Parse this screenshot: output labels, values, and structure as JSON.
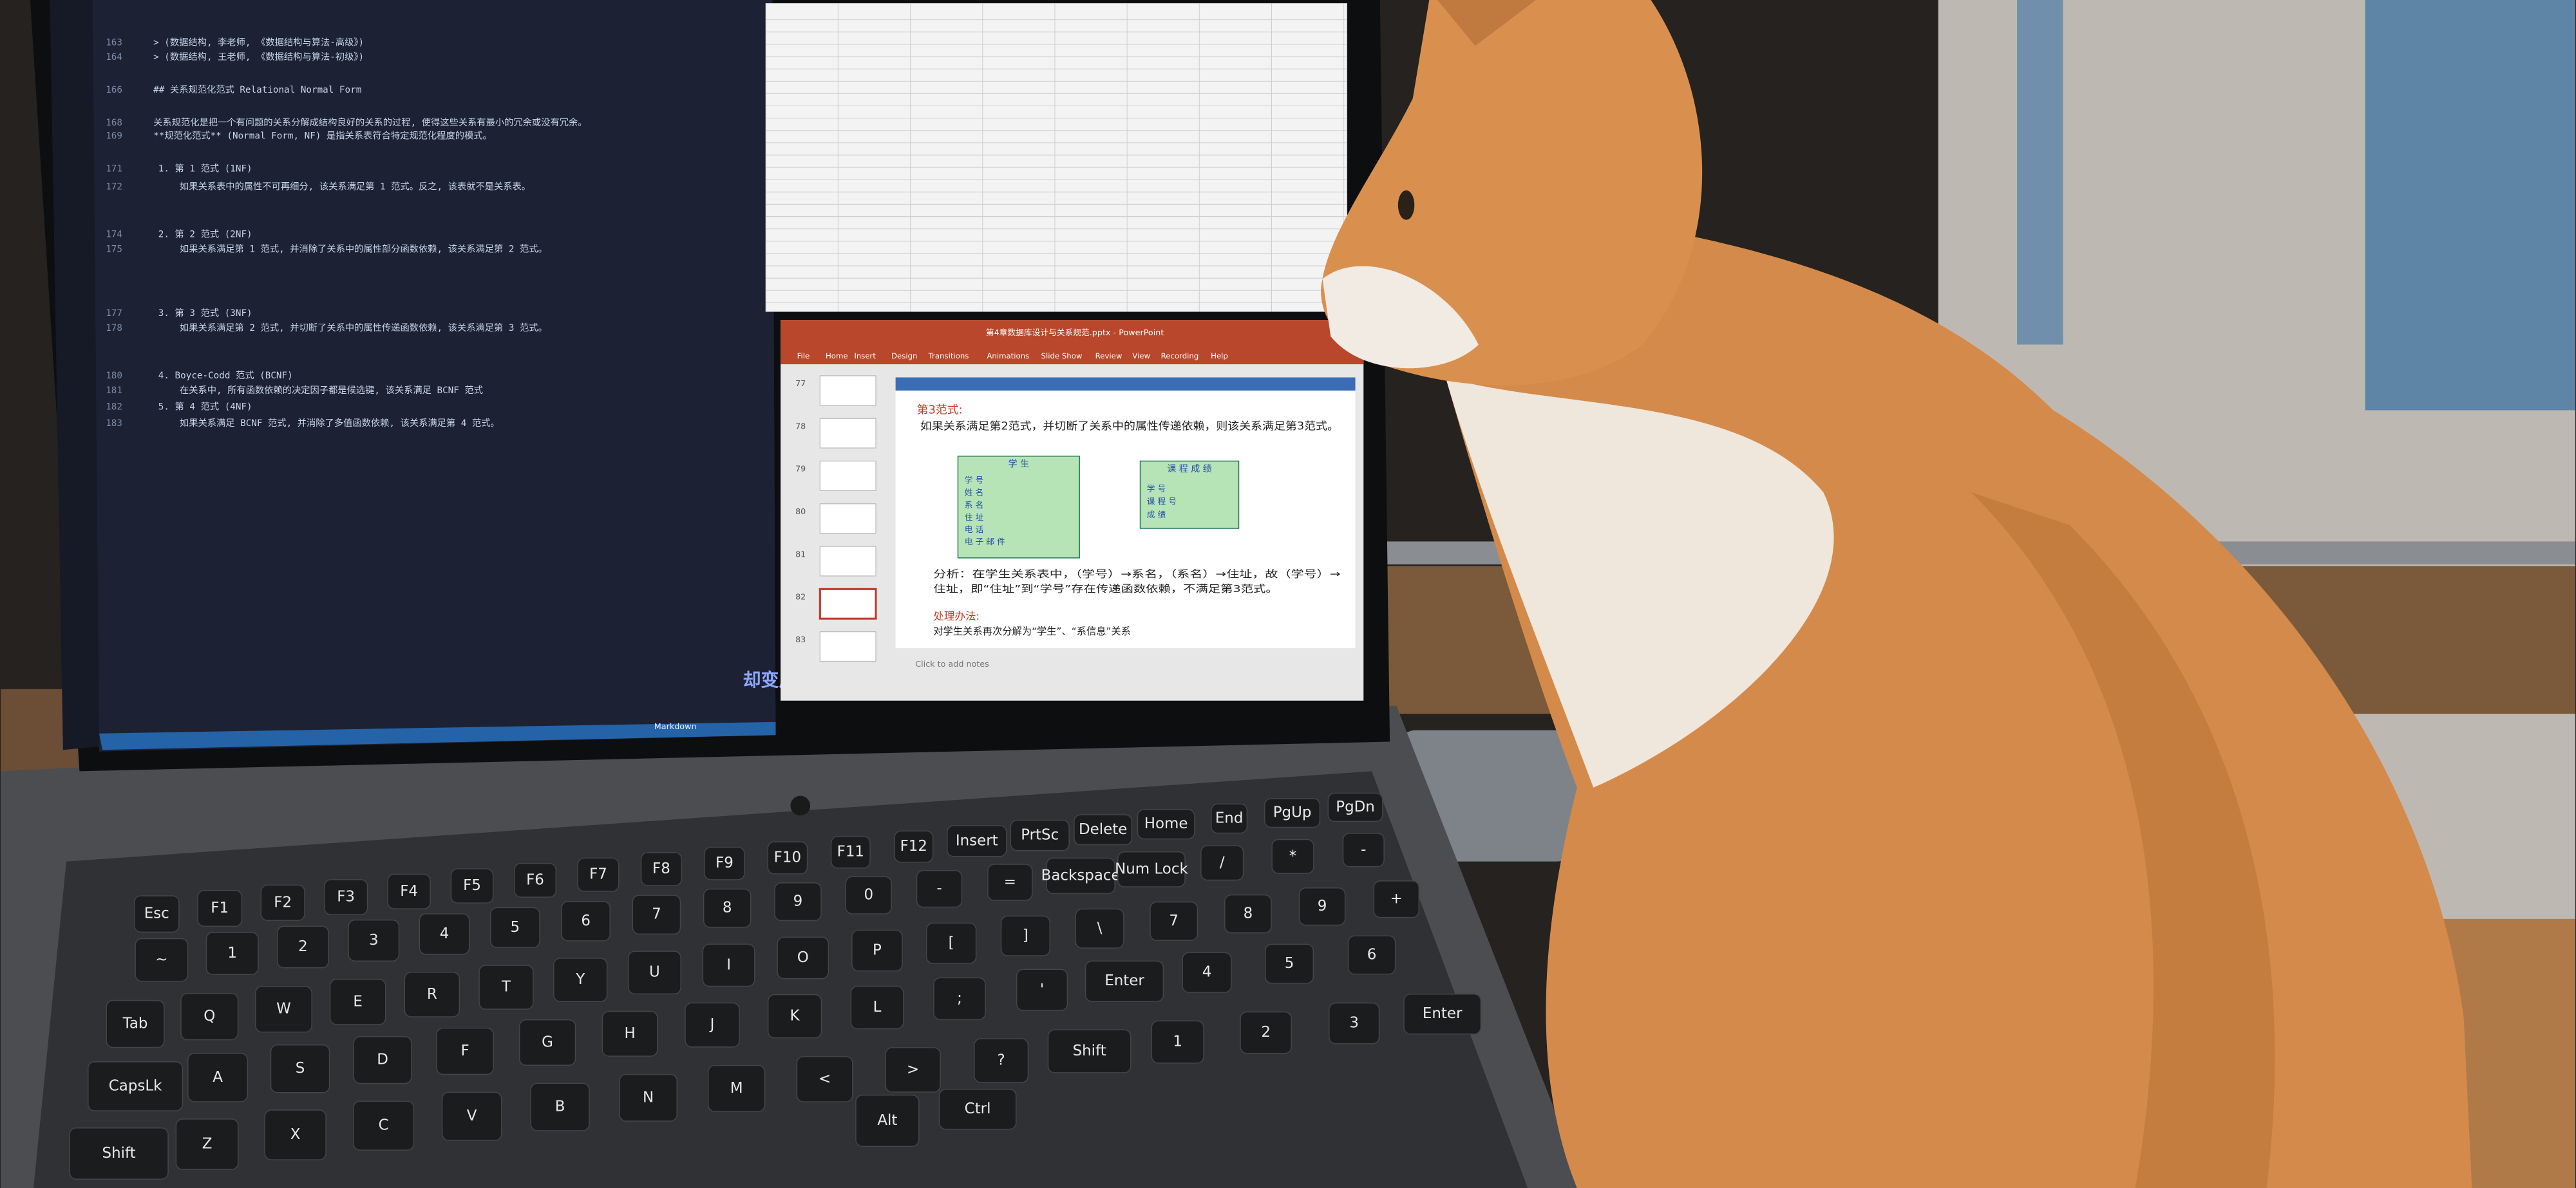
{
  "editor": {
    "lines": [
      {
        "number": "163",
        "text": "> (数据结构, 李老师, 《数据结构与算法-高级》)"
      },
      {
        "number": "164",
        "text": "> (数据结构, 王老师, 《数据结构与算法-初级》)"
      },
      {
        "number": "166",
        "text": "## 关系规范化范式 Relational Normal Form"
      },
      {
        "number": "168",
        "text": "关系规范化是把一个有问题的关系分解成结构良好的关系的过程, 使得这些关系有最小的冗余或没有冗余。"
      },
      {
        "number": "169",
        "text": "**规范化范式** (Normal Form, NF) 是指关系表符合特定规范化程度的模式。"
      },
      {
        "number": "171",
        "text": "1. 第 1 范式 (1NF)"
      },
      {
        "number": "172",
        "text": "如果关系表中的属性不可再细分, 该关系满足第 1 范式。反之, 该表就不是关系表。"
      },
      {
        "number": "174",
        "text": "2. 第 2 范式 (2NF)"
      },
      {
        "number": "175",
        "text": "如果关系满足第 1 范式, 并消除了关系中的属性部分函数依赖, 该关系满足第 2 范式。"
      },
      {
        "number": "177",
        "text": "3. 第 3 范式 (3NF)"
      },
      {
        "number": "178",
        "text": "如果关系满足第 2 范式, 并切断了关系中的属性传递函数依赖, 该关系满足第 3 范式。"
      },
      {
        "number": "180",
        "text": "4. Boyce-Codd 范式 (BCNF)"
      },
      {
        "number": "181",
        "text": "在关系中, 所有函数依赖的决定因子都是候选键, 该关系满足 BCNF 范式"
      },
      {
        "number": "182",
        "text": "5. 第 4 范式 (4NF)"
      },
      {
        "number": "183",
        "text": "如果关系满足 BCNF 范式, 并消除了多值函数依赖, 该关系满足第 4 范式。"
      }
    ],
    "status": "Markdown",
    "subtitle": "却变成我的心脏"
  },
  "powerpoint": {
    "filename": "第4章数据库设计与关系规范.pptx - PowerPoint",
    "tabs": [
      "File",
      "Home",
      "Insert",
      "Design",
      "Transitions",
      "Animations",
      "Slide Show",
      "Review",
      "View",
      "Recording",
      "Help"
    ],
    "thumbnails": [
      "77",
      "78",
      "79",
      "80",
      "81",
      "82",
      "83"
    ],
    "notes": "Click to add notes",
    "slide": {
      "heading": "第3范式:",
      "definition": "如果关系满足第2范式，并切断了关系中的属性传递依赖，则该关系满足第3范式。",
      "table1": {
        "title": "学 生",
        "fields": [
          "学 号",
          "姓 名",
          "系 名",
          "住 址",
          "电 话",
          "电 子 邮 件"
        ]
      },
      "table2": {
        "title": "课 程 成 绩",
        "fields": [
          "学 号",
          "课 程 号",
          "成 绩"
        ]
      },
      "analysis": [
        "分析：在学生关系表中，（学号）→系名，（系名）→住址，故（学号）→",
        "住址，即“住址”到“学号”存在传递函数依赖，不满足第3范式。"
      ],
      "method": "处理办法:",
      "method_text": "对学生关系再次分解为“学生”、“系信息”关系"
    }
  },
  "keyboard": {
    "rows": [
      [
        "Esc",
        "F1",
        "F2",
        "F3",
        "F4",
        "F5",
        "F6",
        "F7",
        "F8",
        "F9",
        "F10",
        "F11",
        "F12",
        "Insert",
        "PrtSc",
        "Delete",
        "Home",
        "End",
        "PgUp",
        "PgDn"
      ],
      [
        "~",
        "1",
        "2",
        "3",
        "4",
        "5",
        "6",
        "7",
        "8",
        "9",
        "0",
        "-",
        "=",
        "Backspace",
        "Num Lock",
        "/",
        "*",
        "-"
      ],
      [
        "Tab",
        "Q",
        "W",
        "E",
        "R",
        "T",
        "Y",
        "U",
        "I",
        "O",
        "P",
        "[",
        "]",
        "\\",
        "7",
        "8",
        "9",
        "+"
      ],
      [
        "CapsLk",
        "A",
        "S",
        "D",
        "F",
        "G",
        "H",
        "J",
        "K",
        "L",
        ";",
        "'",
        "Enter",
        "4",
        "5",
        "6"
      ],
      [
        "Shift",
        "Z",
        "X",
        "C",
        "V",
        "B",
        "N",
        "M",
        "<",
        ">",
        "?",
        "Shift",
        "1",
        "2",
        "3",
        "Enter"
      ],
      [
        "Alt",
        "Ctrl"
      ]
    ]
  }
}
